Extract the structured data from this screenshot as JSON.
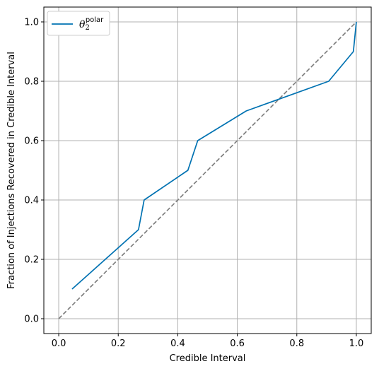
{
  "chart_data": {
    "type": "line",
    "xlabel": "Credible Interval",
    "ylabel": "Fraction of Injections Recovered in Credible Interval",
    "xlim": [
      -0.05,
      1.05
    ],
    "ylim": [
      -0.05,
      1.05
    ],
    "xticks": [
      "0.0",
      "0.2",
      "0.4",
      "0.6",
      "0.8",
      "1.0"
    ],
    "yticks": [
      "0.0",
      "0.2",
      "0.4",
      "0.6",
      "0.8",
      "1.0"
    ],
    "grid": true,
    "legend_position": "top-left",
    "series": [
      {
        "name_base": "θ",
        "name_sub": "2",
        "name_sup": "polar",
        "color": "#0072b2",
        "x": [
          0.045,
          0.268,
          0.287,
          0.434,
          0.467,
          0.63,
          0.907,
          0.99,
          1.0
        ],
        "y": [
          0.1,
          0.3,
          0.4,
          0.5,
          0.6,
          0.7,
          0.8,
          0.9,
          1.0
        ]
      }
    ],
    "reference_line": {
      "x": [
        0.0,
        1.0
      ],
      "y": [
        0.0,
        1.0
      ],
      "color": "#808080",
      "style": "dashed"
    }
  }
}
